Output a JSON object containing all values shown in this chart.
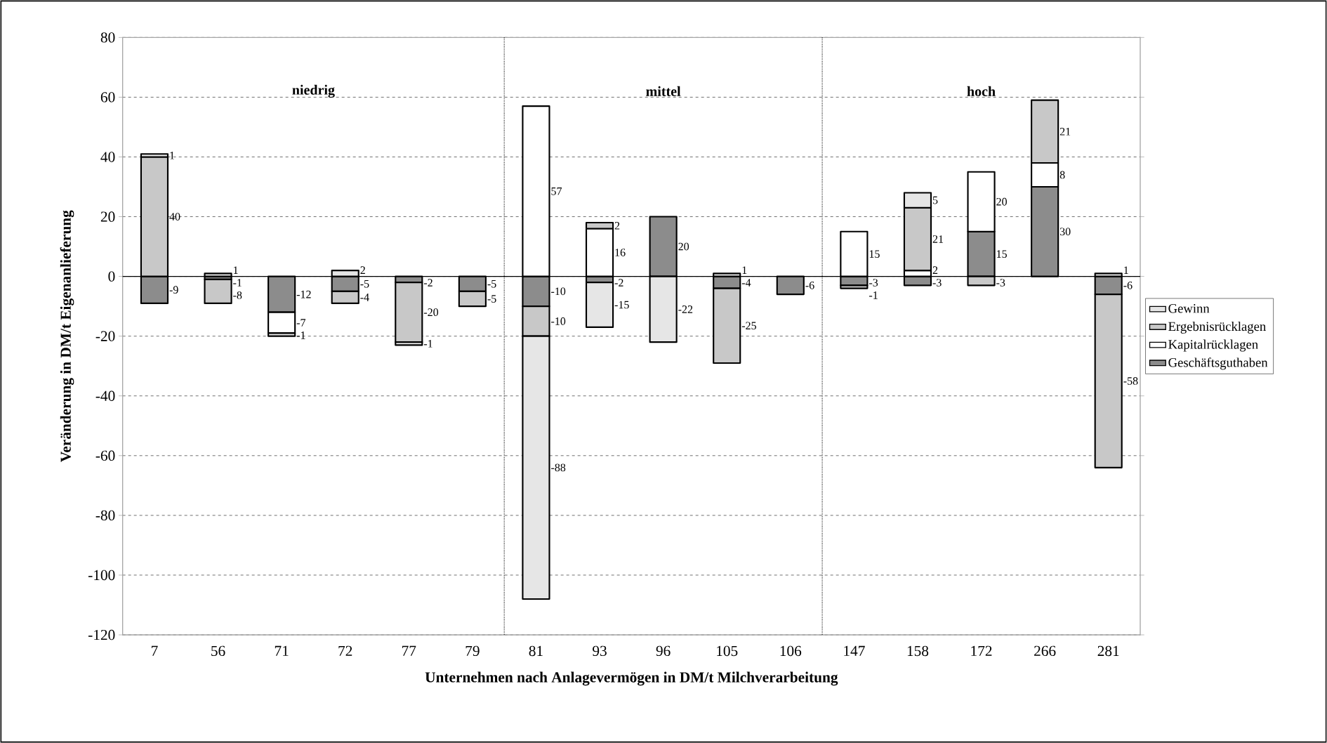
{
  "chart_data": {
    "type": "bar",
    "stacked": true,
    "xlabel": "Unternehmen nach Anlagevermögen in DM/t Milchverarbeitung",
    "ylabel": "Veränderung in DM/t Eigenanlieferung",
    "categories": [
      "7",
      "56",
      "71",
      "72",
      "77",
      "79",
      "81",
      "93",
      "96",
      "105",
      "106",
      "147",
      "158",
      "172",
      "266",
      "281"
    ],
    "series": [
      {
        "name": "Geschäftsguthaben",
        "color": "#8c8c8c",
        "values": [
          -9,
          -1,
          -12,
          -5,
          -2,
          -5,
          -10,
          -2,
          20,
          -4,
          -6,
          -3,
          -3,
          15,
          30,
          -6
        ]
      },
      {
        "name": "Kapitalrücklagen",
        "color": "#ffffff",
        "values": [
          null,
          null,
          -7,
          null,
          null,
          null,
          57,
          16,
          null,
          null,
          null,
          15,
          2,
          20,
          8,
          null
        ]
      },
      {
        "name": "Ergebnisrücklagen",
        "color": "#c8c8c8",
        "values": [
          40,
          -8,
          null,
          -4,
          -20,
          -5,
          -10,
          2,
          null,
          -25,
          null,
          -1,
          21,
          -3,
          21,
          -58
        ]
      },
      {
        "name": "Gewinn",
        "color": "#e6e6e6",
        "values": [
          1,
          1,
          -1,
          2,
          -1,
          null,
          -88,
          -15,
          -22,
          1,
          null,
          null,
          5,
          null,
          null,
          1
        ]
      }
    ],
    "ylim": [
      -120,
      80
    ],
    "yticks": [
      -120,
      -100,
      -80,
      -60,
      -40,
      -20,
      0,
      20,
      40,
      60,
      80
    ],
    "grid": "y",
    "legend": "right",
    "data_labels": true,
    "annotations": [
      "niedrig",
      "mittel",
      "hoch"
    ]
  }
}
